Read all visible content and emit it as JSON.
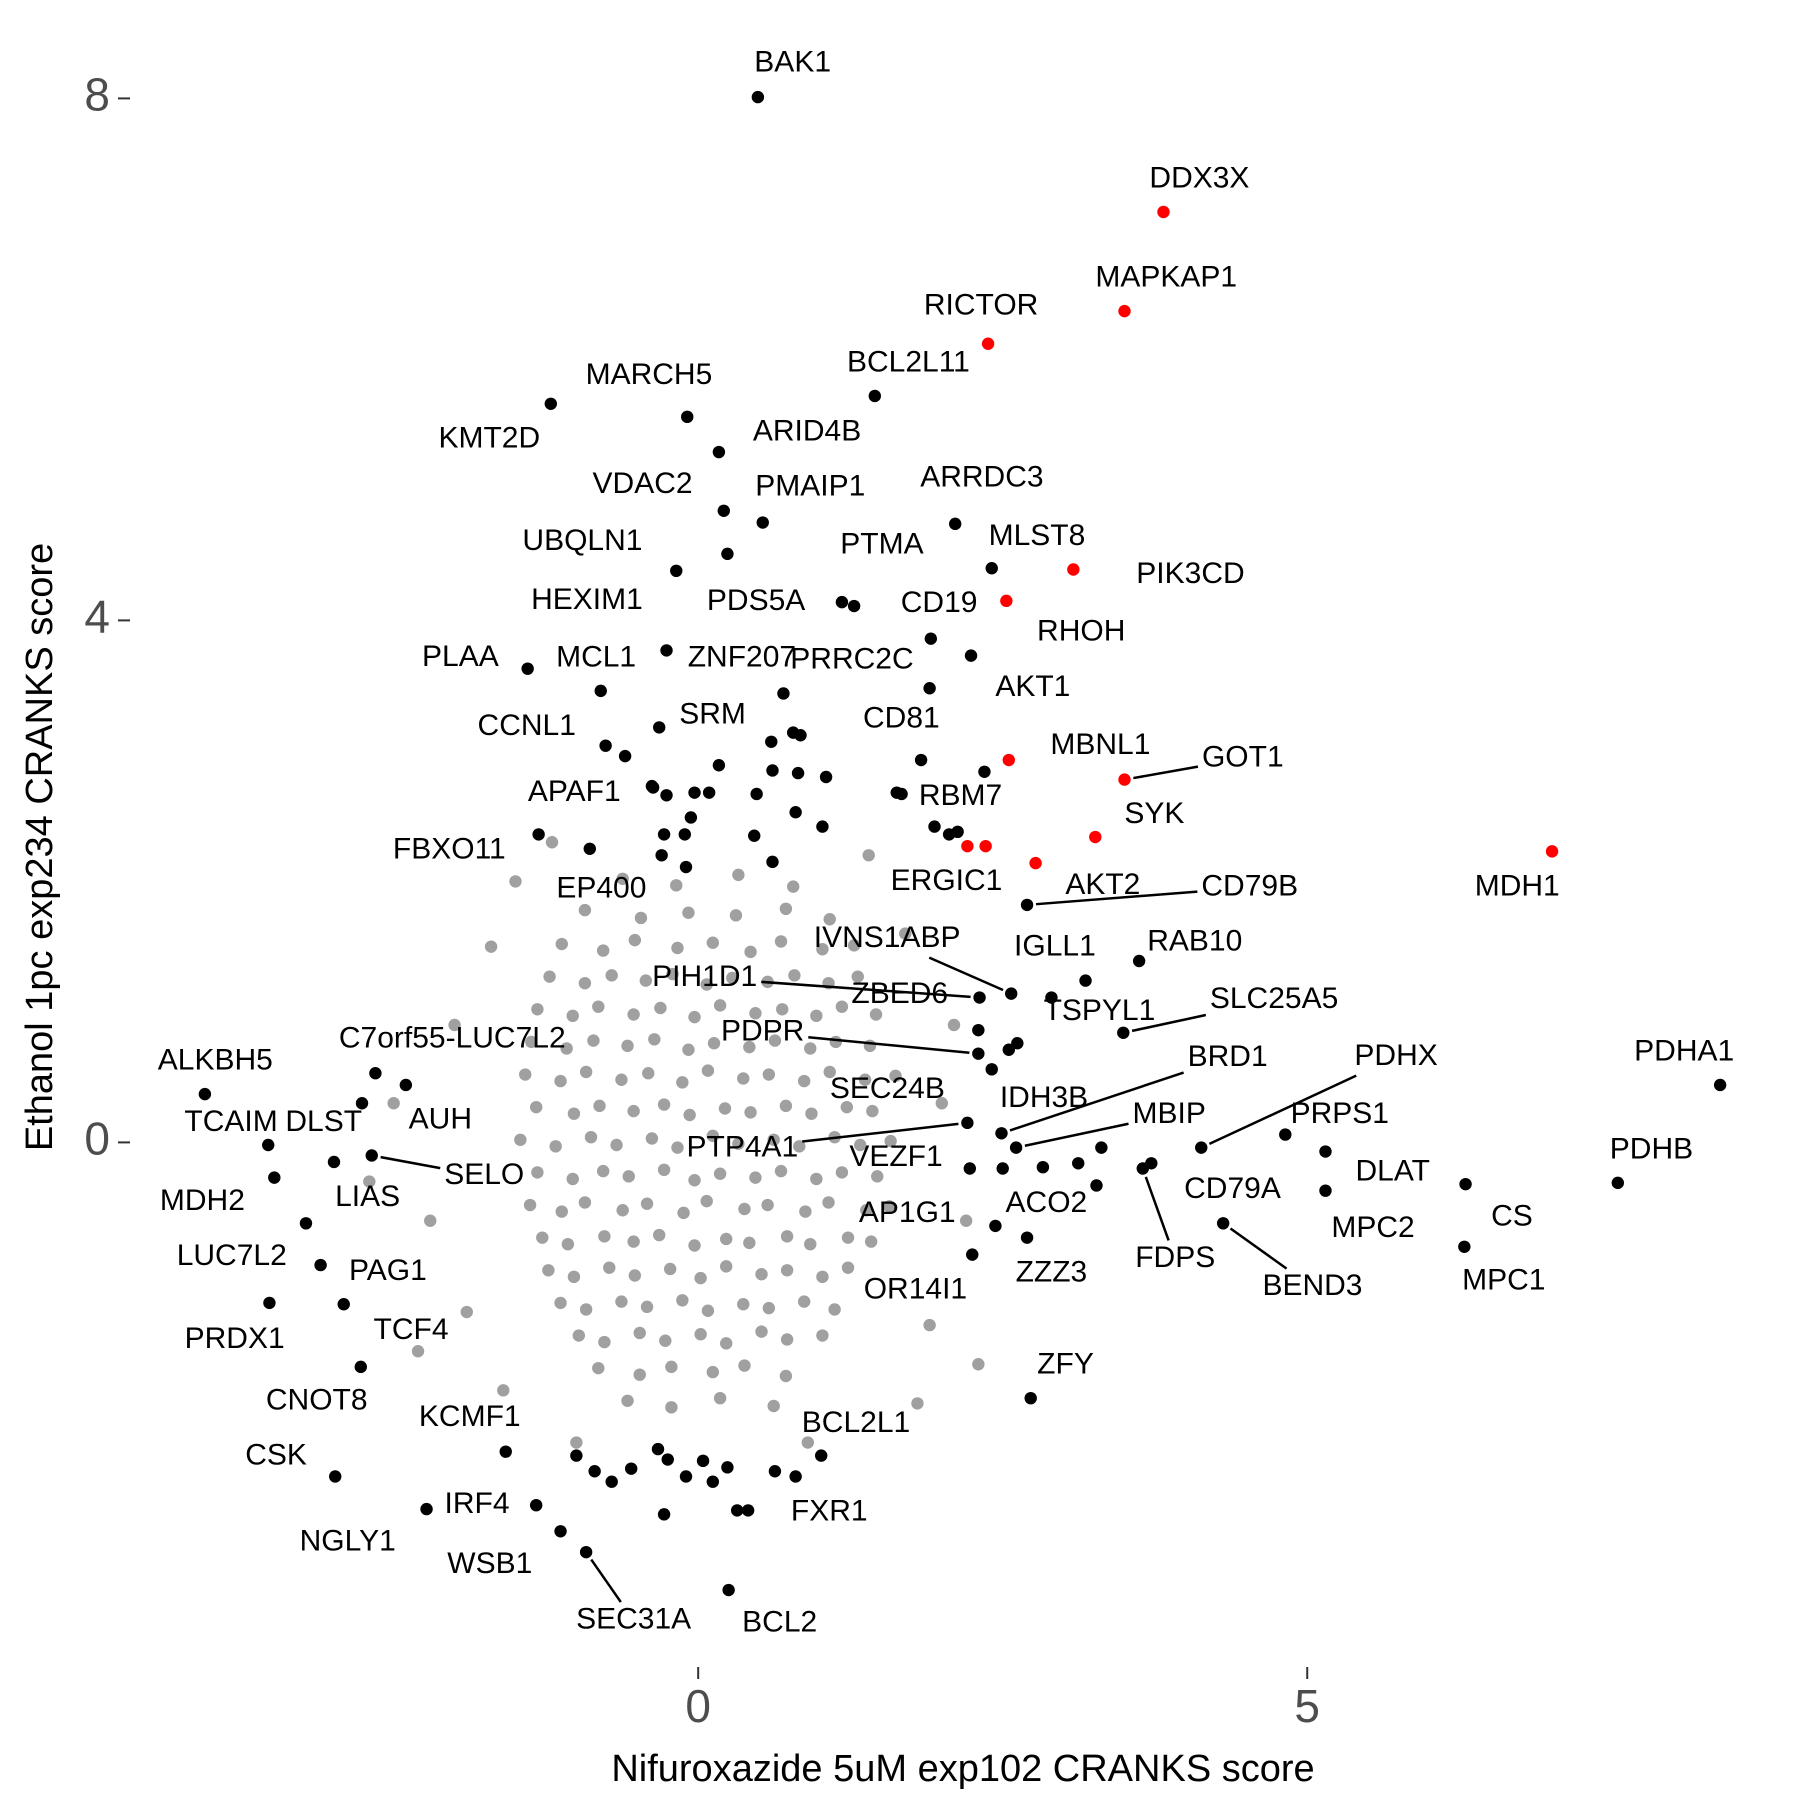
{
  "chart_data": {
    "type": "scatter",
    "xlabel": "Nifuroxazide 5uM exp102 CRANKS score",
    "ylabel": "Ethanol 1pc exp234 CRANKS score",
    "xlim": [
      -4.7,
      8.7
    ],
    "ylim": [
      -4,
      8.4
    ],
    "xticks": [
      0,
      5
    ],
    "yticks": [
      0,
      4,
      8
    ],
    "series": [
      {
        "color": "#a0a0a0",
        "x": [
          -0.62,
          -0.18,
          0.33,
          0.78,
          -0.93,
          -0.47,
          -0.08,
          0.31,
          0.72,
          1.08,
          -1.12,
          -0.78,
          -0.52,
          -0.17,
          0.12,
          0.43,
          0.68,
          1.02,
          1.28,
          -1.22,
          -0.93,
          -0.71,
          -0.43,
          -0.21,
          0.07,
          0.28,
          0.57,
          0.79,
          1.07,
          1.31,
          -1.32,
          -1.03,
          -0.82,
          -0.53,
          -0.31,
          -0.03,
          0.18,
          0.47,
          0.69,
          0.97,
          1.18,
          1.46,
          -1.37,
          -1.08,
          -0.86,
          -0.58,
          -0.36,
          -0.08,
          0.13,
          0.42,
          0.63,
          0.92,
          1.13,
          1.41,
          -1.42,
          -1.13,
          -0.92,
          -0.63,
          -0.41,
          -0.13,
          0.08,
          0.37,
          0.58,
          0.87,
          1.08,
          1.37,
          1.62,
          -1.33,
          -1.02,
          -0.81,
          -0.53,
          -0.28,
          -0.07,
          0.22,
          0.43,
          0.72,
          0.93,
          1.22,
          1.43,
          -1.46,
          -1.17,
          -0.88,
          -0.67,
          -0.38,
          -0.17,
          0.12,
          0.33,
          0.62,
          0.83,
          1.12,
          1.33,
          1.58,
          -1.32,
          -1.03,
          -0.78,
          -0.57,
          -0.28,
          -0.03,
          0.18,
          0.47,
          0.68,
          0.97,
          1.18,
          1.47,
          -1.38,
          -1.12,
          -0.93,
          -0.62,
          -0.42,
          -0.12,
          0.07,
          0.38,
          0.57,
          0.88,
          1.07,
          1.38,
          1.57,
          -1.28,
          -1.07,
          -0.77,
          -0.53,
          -0.32,
          -0.03,
          0.23,
          0.42,
          0.73,
          0.92,
          1.23,
          1.42,
          -1.23,
          -1.02,
          -0.73,
          -0.52,
          -0.23,
          0.02,
          0.23,
          0.52,
          0.73,
          1.02,
          1.23,
          -1.13,
          -0.92,
          -0.63,
          -0.42,
          -0.13,
          0.08,
          0.37,
          0.58,
          0.87,
          1.12,
          -0.98,
          -0.77,
          -0.48,
          -0.27,
          0.02,
          0.23,
          0.52,
          0.73,
          1.02,
          -0.82,
          -0.48,
          -0.22,
          0.12,
          0.38,
          0.72,
          -0.58,
          -0.22,
          0.18,
          0.62,
          -2.5,
          -2.2,
          -2.0,
          -1.9,
          -1.7,
          -1.6,
          1.9,
          2.0,
          2.2,
          1.7,
          1.4,
          -1.2,
          -1.0,
          0.9,
          2.3,
          -2.3,
          -1.5,
          1.8,
          -2.7,
          2.1
        ],
        "y": [
          2.02,
          1.97,
          2.05,
          1.96,
          1.78,
          1.72,
          1.76,
          1.74,
          1.79,
          1.71,
          1.52,
          1.47,
          1.55,
          1.49,
          1.53,
          1.46,
          1.54,
          1.48,
          1.51,
          1.27,
          1.22,
          1.28,
          1.24,
          1.29,
          1.21,
          1.26,
          1.23,
          1.28,
          1.22,
          1.27,
          1.02,
          0.97,
          1.04,
          0.98,
          1.03,
          0.96,
          1.05,
          0.99,
          1.02,
          0.97,
          1.04,
          0.98,
          0.77,
          0.72,
          0.78,
          0.74,
          0.79,
          0.71,
          0.76,
          0.73,
          0.78,
          0.72,
          0.77,
          0.74,
          0.52,
          0.47,
          0.54,
          0.48,
          0.53,
          0.46,
          0.55,
          0.49,
          0.52,
          0.47,
          0.54,
          0.48,
          0.51,
          0.27,
          0.22,
          0.28,
          0.24,
          0.29,
          0.21,
          0.26,
          0.23,
          0.28,
          0.22,
          0.27,
          0.24,
          0.02,
          -0.03,
          0.04,
          -0.02,
          0.03,
          -0.04,
          0.05,
          -0.01,
          0.02,
          -0.03,
          0.04,
          -0.02,
          0.01,
          -0.23,
          -0.28,
          -0.22,
          -0.26,
          -0.21,
          -0.29,
          -0.24,
          -0.27,
          -0.22,
          -0.28,
          -0.23,
          -0.26,
          -0.48,
          -0.53,
          -0.46,
          -0.52,
          -0.47,
          -0.54,
          -0.45,
          -0.51,
          -0.48,
          -0.53,
          -0.46,
          -0.52,
          -0.49,
          -0.73,
          -0.78,
          -0.72,
          -0.76,
          -0.71,
          -0.79,
          -0.74,
          -0.77,
          -0.72,
          -0.78,
          -0.73,
          -0.76,
          -0.98,
          -1.03,
          -0.96,
          -1.02,
          -0.97,
          -1.04,
          -0.95,
          -1.01,
          -0.98,
          -1.03,
          -0.96,
          -1.23,
          -1.28,
          -1.22,
          -1.26,
          -1.21,
          -1.29,
          -1.24,
          -1.27,
          -1.22,
          -1.28,
          -1.48,
          -1.53,
          -1.46,
          -1.52,
          -1.47,
          -1.54,
          -1.45,
          -1.51,
          -1.48,
          -1.73,
          -1.78,
          -1.72,
          -1.76,
          -1.71,
          -1.79,
          -1.98,
          -2.03,
          -1.96,
          -2.02,
          0.3,
          -0.6,
          0.9,
          -1.3,
          1.5,
          -1.9,
          -1.4,
          0.3,
          -0.6,
          1.6,
          2.2,
          2.3,
          -2.3,
          -2.3,
          -1.7,
          -1.6,
          2.0,
          -2.0,
          -0.3,
          0.9
        ]
      },
      {
        "color": "#000000",
        "labels": [
          "BAK1",
          "MARCH5",
          "KMT2D",
          "ARID4B",
          "BCL2L11",
          "VDAC2",
          "PMAIP1",
          "UBQLN1",
          "ARRDC3",
          "PTMA",
          "PDS5A",
          "HEXIM1",
          "MLST8",
          "PRRC2C",
          "RHOH",
          "AKT1",
          "PLAA",
          "MCL1",
          "ZNF207",
          "SRM",
          "CCNL1",
          "CD81",
          "APAF1",
          "RBM7",
          "FBXO11",
          "EP400",
          "CD79B",
          "RAB10",
          "TSPYL1",
          "IGLL1",
          "IVNS1ABP",
          "PIH1D1",
          "SLC25A5",
          "PDPR",
          "ZBED6",
          "IDH3B",
          "SEC24B",
          "BRD1",
          "MBIP",
          "PTP4A1",
          "VEZF1",
          "PDHX",
          "PRPS1",
          "DLAT",
          "MPC2",
          "CS",
          "MPC1",
          "PDHA1",
          "PDHB",
          "CD79A",
          "FDPS",
          "BEND3",
          "ACO2",
          "AP1G1",
          "ZZZ3",
          "OR14I1",
          "ZFY",
          "ALKBH5",
          "TCAIM",
          "DLST",
          "C7orf55-LUC7L2",
          "AUH",
          "SELO",
          "MDH2",
          "LIAS",
          "LUC7L2",
          "PAG1",
          "PRDX1",
          "TCF4",
          "CNOT8",
          "CSK",
          "KCMF1",
          "IRF4",
          "NGLY1",
          "WSB1",
          "SEC31A",
          "BCL2",
          "BCL2L1",
          "FXR1",
          null,
          null,
          null,
          null,
          null,
          null,
          null,
          null,
          null,
          null,
          null,
          null,
          null,
          null,
          null,
          null,
          null,
          null,
          null,
          null,
          null,
          null,
          null,
          null,
          null,
          null,
          null,
          null,
          null,
          null,
          null,
          null,
          null,
          null,
          null,
          null,
          null,
          null,
          null,
          null,
          null,
          null,
          null,
          null,
          null,
          null,
          null
        ],
        "x": [
          0.49,
          -0.09,
          -1.21,
          0.17,
          1.45,
          0.21,
          0.53,
          0.24,
          2.11,
          1.28,
          1.18,
          -0.18,
          2.41,
          1.91,
          2.24,
          1.9,
          -1.4,
          -0.8,
          -0.26,
          -0.32,
          -0.76,
          1.83,
          -0.37,
          1.63,
          -1.31,
          -0.89,
          2.7,
          3.62,
          3.18,
          2.9,
          2.57,
          2.31,
          3.49,
          2.3,
          2.55,
          2.62,
          2.41,
          2.49,
          2.61,
          2.21,
          2.5,
          4.13,
          4.82,
          5.15,
          5.15,
          6.3,
          6.29,
          8.39,
          7.55,
          3.72,
          3.65,
          4.31,
          2.83,
          2.44,
          2.7,
          2.25,
          2.73,
          -4.05,
          -3.53,
          -2.76,
          -2.4,
          -2.65,
          -2.68,
          -3.48,
          -2.99,
          -3.22,
          -3.1,
          -3.52,
          -2.91,
          -2.77,
          -2.98,
          -1.58,
          -1.33,
          -2.23,
          -1.13,
          -0.92,
          0.25,
          1.01,
          0.8,
          0.17,
          -0.38,
          -0.26,
          -0.03,
          0.09,
          -0.06,
          -0.28,
          -0.11,
          -0.3,
          -0.1,
          0.48,
          0.61,
          0.82,
          1.05,
          0.6,
          0.78,
          0.84,
          0.46,
          0.61,
          0.8,
          1.02,
          1.67,
          1.94,
          2.06,
          2.13,
          2.35,
          -0.6,
          0.7,
          3.27,
          3.31,
          3.12,
          2.23,
          -0.85,
          -0.71,
          -0.55,
          -0.33,
          -0.25,
          -0.1,
          0.04,
          0.12,
          0.24,
          0.63,
          -0.28,
          0.32,
          0.41,
          -1.0,
          2.3
        ],
        "y": [
          8.01,
          5.56,
          5.66,
          5.29,
          5.72,
          4.84,
          4.75,
          4.51,
          4.74,
          4.11,
          4.14,
          4.38,
          4.4,
          3.86,
          3.73,
          3.48,
          3.63,
          3.46,
          3.77,
          3.18,
          3.04,
          2.93,
          2.72,
          2.68,
          2.36,
          2.25,
          1.82,
          1.39,
          1.24,
          1.11,
          1.14,
          1.11,
          0.84,
          0.68,
          0.71,
          0.76,
          0.56,
          0.07,
          -0.04,
          0.15,
          -0.2,
          -0.04,
          0.06,
          -0.07,
          -0.37,
          -0.32,
          -0.8,
          0.44,
          -0.31,
          -0.16,
          -0.2,
          -0.62,
          -0.19,
          -0.64,
          -0.73,
          -0.86,
          -1.96,
          0.37,
          -0.02,
          0.3,
          0.44,
          0.53,
          -0.1,
          -0.27,
          -0.15,
          -0.62,
          -0.94,
          -1.23,
          -1.24,
          -1.72,
          -2.56,
          -2.37,
          -2.78,
          -2.81,
          -2.98,
          -3.14,
          -3.43,
          -2.4,
          -2.56,
          2.89,
          2.73,
          2.66,
          2.68,
          2.68,
          2.49,
          2.36,
          2.36,
          2.2,
          2.11,
          2.67,
          2.85,
          2.83,
          2.8,
          3.07,
          3.14,
          3.12,
          2.35,
          2.15,
          2.53,
          2.42,
          2.67,
          2.42,
          2.36,
          2.38,
          2.84,
          2.96,
          3.44,
          -0.33,
          -0.04,
          -0.16,
          -0.2,
          -2.52,
          -2.6,
          -2.5,
          -2.35,
          -2.43,
          -2.56,
          -2.44,
          -2.6,
          -2.49,
          -2.52,
          -2.85,
          -2.82,
          -2.82,
          -2.4,
          0.86
        ]
      },
      {
        "color": "#ff0000",
        "labels": [
          "DDX3X",
          "MAPKAP1",
          "RICTOR",
          "PIK3CD",
          "CD19",
          "MBNL1",
          "GOT1",
          "SYK",
          "AKT2",
          "ERGIC1",
          null,
          "MDH1"
        ],
        "x": [
          3.82,
          3.5,
          2.38,
          3.08,
          2.53,
          2.55,
          3.5,
          3.26,
          2.77,
          2.21,
          2.36,
          7.01
        ],
        "y": [
          7.13,
          6.37,
          6.12,
          4.39,
          4.15,
          2.93,
          2.78,
          2.34,
          2.14,
          2.27,
          2.27,
          2.23
        ]
      }
    ]
  }
}
